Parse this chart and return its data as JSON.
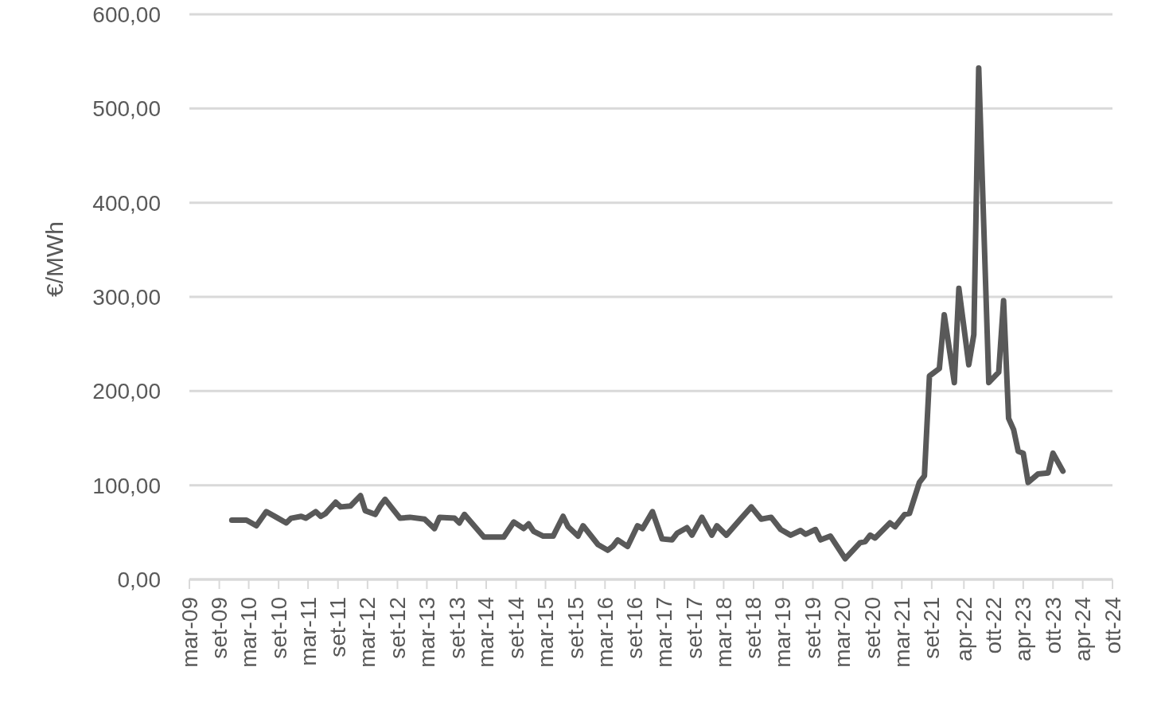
{
  "chart_data": {
    "type": "line",
    "ylabel": "€/MWh",
    "x": [
      "2009-12",
      "2010-03",
      "2010-05",
      "2010-07",
      "2010-09",
      "2010-11",
      "2010-12",
      "2011-02",
      "2011-03",
      "2011-05",
      "2011-06",
      "2011-07",
      "2011-09",
      "2011-10",
      "2011-12",
      "2012-02",
      "2012-03",
      "2012-05",
      "2012-06",
      "2012-07",
      "2012-10",
      "2012-12",
      "2013-03",
      "2013-05",
      "2013-06",
      "2013-09",
      "2013-10",
      "2013-11",
      "2014-03",
      "2014-07",
      "2014-09",
      "2014-11",
      "2014-12",
      "2015-01",
      "2015-03",
      "2015-05",
      "2015-07",
      "2015-08",
      "2015-10",
      "2015-11",
      "2016-02",
      "2016-04",
      "2016-05",
      "2016-06",
      "2016-08",
      "2016-10",
      "2016-11",
      "2017-01",
      "2017-03",
      "2017-05",
      "2017-06",
      "2017-08",
      "2017-09",
      "2017-11",
      "2018-01",
      "2018-02",
      "2018-04",
      "2018-07",
      "2018-09",
      "2018-11",
      "2019-01",
      "2019-03",
      "2019-05",
      "2019-07",
      "2019-08",
      "2019-10",
      "2019-11",
      "2020-01",
      "2020-04",
      "2020-07",
      "2020-08",
      "2020-09",
      "2020-10",
      "2021-01",
      "2021-02",
      "2021-04",
      "2021-05",
      "2021-07",
      "2021-08",
      "2021-09",
      "2021-11",
      "2021-12",
      "2022-02",
      "2022-03",
      "2022-05",
      "2022-06",
      "2022-07",
      "2022-09",
      "2022-11",
      "2022-12",
      "2023-01",
      "2023-02",
      "2023-03",
      "2023-04",
      "2023-05",
      "2023-07",
      "2023-09",
      "2023-10",
      "2023-12"
    ],
    "series": [
      {
        "color": "#595959",
        "values": [
          63,
          63,
          57,
          72,
          66,
          60,
          65,
          67,
          65,
          72,
          67,
          70,
          82,
          77,
          78,
          89,
          73,
          69,
          78,
          85,
          65,
          66,
          64,
          54,
          66,
          65,
          60,
          69,
          45,
          45,
          61,
          54,
          59,
          51,
          46,
          46,
          67,
          56,
          46,
          57,
          37,
          31,
          35,
          42,
          35,
          57,
          54,
          72,
          43,
          42,
          49,
          55,
          47,
          66,
          47,
          57,
          47,
          65,
          77,
          64,
          66,
          53,
          47,
          52,
          48,
          53,
          42,
          46,
          22,
          39,
          40,
          47,
          44,
          60,
          56,
          69,
          70,
          103,
          110,
          216,
          224,
          281,
          209,
          309,
          228,
          260,
          543,
          209,
          220,
          296,
          171,
          159,
          136,
          134,
          103,
          112,
          113,
          134,
          115
        ]
      }
    ],
    "xlim": [
      "2009-03-15",
      "2024-10-01"
    ],
    "xticks": [
      {
        "value": "2009-03-15",
        "label": "mar-09"
      },
      {
        "value": "2009-09-15",
        "label": "set-09"
      },
      {
        "value": "2010-03-15",
        "label": "mar-10"
      },
      {
        "value": "2010-09-15",
        "label": "set-10"
      },
      {
        "value": "2011-03-15",
        "label": "mar-11"
      },
      {
        "value": "2011-09-15",
        "label": "set-11"
      },
      {
        "value": "2012-03-15",
        "label": "mar-12"
      },
      {
        "value": "2012-09-15",
        "label": "set-12"
      },
      {
        "value": "2013-03-15",
        "label": "mar-13"
      },
      {
        "value": "2013-09-15",
        "label": "set-13"
      },
      {
        "value": "2014-03-15",
        "label": "mar-14"
      },
      {
        "value": "2014-09-15",
        "label": "set-14"
      },
      {
        "value": "2015-03-15",
        "label": "mar-15"
      },
      {
        "value": "2015-09-15",
        "label": "set-15"
      },
      {
        "value": "2016-03-15",
        "label": "mar-16"
      },
      {
        "value": "2016-09-15",
        "label": "set-16"
      },
      {
        "value": "2017-03-15",
        "label": "mar-17"
      },
      {
        "value": "2017-09-15",
        "label": "set-17"
      },
      {
        "value": "2018-03-15",
        "label": "mar-18"
      },
      {
        "value": "2018-09-15",
        "label": "set-18"
      },
      {
        "value": "2019-03-15",
        "label": "mar-19"
      },
      {
        "value": "2019-09-15",
        "label": "set-19"
      },
      {
        "value": "2020-03-15",
        "label": "mar-20"
      },
      {
        "value": "2020-09-15",
        "label": "set-20"
      },
      {
        "value": "2021-03-15",
        "label": "mar-21"
      },
      {
        "value": "2021-09-15",
        "label": "set-21"
      },
      {
        "value": "2022-04-01",
        "label": "apr-22"
      },
      {
        "value": "2022-10-01",
        "label": "ott-22"
      },
      {
        "value": "2023-04-01",
        "label": "apr-23"
      },
      {
        "value": "2023-10-01",
        "label": "ott-23"
      },
      {
        "value": "2024-04-01",
        "label": "apr-24"
      },
      {
        "value": "2024-10-01",
        "label": "ott-24"
      }
    ],
    "ylim": [
      0,
      600
    ],
    "yticks": [
      {
        "value": 0,
        "label": "0,00"
      },
      {
        "value": 100,
        "label": "100,00"
      },
      {
        "value": 200,
        "label": "200,00"
      },
      {
        "value": 300,
        "label": "300,00"
      },
      {
        "value": 400,
        "label": "400,00"
      },
      {
        "value": 500,
        "label": "500,00"
      },
      {
        "value": 600,
        "label": "600,00"
      }
    ],
    "grid": "y",
    "legend": false,
    "marker": "none",
    "line_style": "solid"
  }
}
